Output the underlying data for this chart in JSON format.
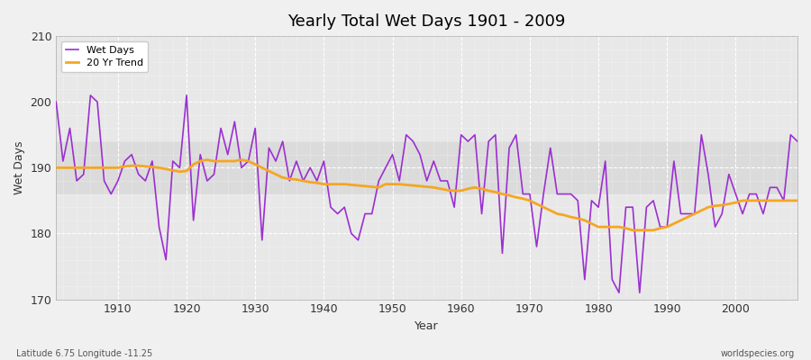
{
  "title": "Yearly Total Wet Days 1901 - 2009",
  "xlabel": "Year",
  "ylabel": "Wet Days",
  "footnote_left": "Latitude 6.75 Longitude -11.25",
  "footnote_right": "worldspecies.org",
  "ylim": [
    170,
    210
  ],
  "xlim": [
    1901,
    2009
  ],
  "yticks": [
    170,
    180,
    190,
    200,
    210
  ],
  "xticks": [
    1910,
    1920,
    1930,
    1940,
    1950,
    1960,
    1970,
    1980,
    1990,
    2000
  ],
  "wet_days_color": "#9b30d0",
  "trend_color": "#f5a623",
  "background_color": "#f0f0f0",
  "plot_bg_color": "#e8e8e8",
  "plot_bg_color2": "#d8d8d8",
  "grid_color": "#ffffff",
  "wet_days": {
    "1901": 200,
    "1902": 191,
    "1903": 196,
    "1904": 188,
    "1905": 189,
    "1906": 201,
    "1907": 200,
    "1908": 188,
    "1909": 186,
    "1910": 188,
    "1911": 191,
    "1912": 192,
    "1913": 189,
    "1914": 188,
    "1915": 191,
    "1916": 181,
    "1917": 176,
    "1918": 191,
    "1919": 190,
    "1920": 201,
    "1921": 182,
    "1922": 192,
    "1923": 188,
    "1924": 189,
    "1925": 196,
    "1926": 192,
    "1927": 197,
    "1928": 190,
    "1929": 191,
    "1930": 196,
    "1931": 179,
    "1932": 193,
    "1933": 191,
    "1934": 194,
    "1935": 188,
    "1936": 191,
    "1937": 188,
    "1938": 190,
    "1939": 188,
    "1940": 191,
    "1941": 184,
    "1942": 183,
    "1943": 184,
    "1944": 180,
    "1945": 179,
    "1946": 183,
    "1947": 183,
    "1948": 188,
    "1949": 190,
    "1950": 192,
    "1951": 188,
    "1952": 195,
    "1953": 194,
    "1954": 192,
    "1955": 188,
    "1956": 191,
    "1957": 188,
    "1958": 188,
    "1959": 184,
    "1960": 195,
    "1961": 194,
    "1962": 195,
    "1963": 183,
    "1964": 194,
    "1965": 195,
    "1966": 177,
    "1967": 193,
    "1968": 195,
    "1969": 186,
    "1970": 186,
    "1971": 178,
    "1972": 186,
    "1973": 193,
    "1974": 186,
    "1975": 186,
    "1976": 186,
    "1977": 185,
    "1978": 173,
    "1979": 185,
    "1980": 184,
    "1981": 191,
    "1982": 173,
    "1983": 171,
    "1984": 184,
    "1985": 184,
    "1986": 171,
    "1987": 184,
    "1988": 185,
    "1989": 181,
    "1990": 181,
    "1991": 191,
    "1992": 183,
    "1993": 183,
    "1994": 183,
    "1995": 195,
    "1996": 189,
    "1997": 181,
    "1998": 183,
    "1999": 189,
    "2000": 186,
    "2001": 183,
    "2002": 186,
    "2003": 186,
    "2004": 183,
    "2005": 187,
    "2006": 187,
    "2007": 185,
    "2008": 195,
    "2009": 194
  },
  "trend_20yr": {
    "1901": 190.0,
    "1902": 190.0,
    "1903": 190.0,
    "1904": 190.0,
    "1905": 190.0,
    "1906": 190.0,
    "1907": 190.0,
    "1908": 190.0,
    "1909": 190.0,
    "1910": 190.0,
    "1911": 190.2,
    "1912": 190.3,
    "1913": 190.3,
    "1914": 190.2,
    "1915": 190.1,
    "1916": 190.0,
    "1917": 189.8,
    "1918": 189.6,
    "1919": 189.4,
    "1920": 189.5,
    "1921": 190.5,
    "1922": 191.0,
    "1923": 191.2,
    "1924": 191.0,
    "1925": 191.0,
    "1926": 191.0,
    "1927": 191.0,
    "1928": 191.2,
    "1929": 191.0,
    "1930": 190.5,
    "1931": 190.0,
    "1932": 189.5,
    "1933": 189.0,
    "1934": 188.5,
    "1935": 188.3,
    "1936": 188.2,
    "1937": 188.0,
    "1938": 187.8,
    "1939": 187.7,
    "1940": 187.5,
    "1941": 187.5,
    "1942": 187.5,
    "1943": 187.5,
    "1944": 187.4,
    "1945": 187.3,
    "1946": 187.2,
    "1947": 187.1,
    "1948": 187.0,
    "1949": 187.5,
    "1950": 187.5,
    "1951": 187.5,
    "1952": 187.4,
    "1953": 187.3,
    "1954": 187.2,
    "1955": 187.1,
    "1956": 187.0,
    "1957": 186.8,
    "1958": 186.6,
    "1959": 186.5,
    "1960": 186.5,
    "1961": 186.8,
    "1962": 187.0,
    "1963": 186.8,
    "1964": 186.5,
    "1965": 186.3,
    "1966": 186.0,
    "1967": 185.8,
    "1968": 185.5,
    "1969": 185.3,
    "1970": 185.0,
    "1971": 184.5,
    "1972": 184.0,
    "1973": 183.5,
    "1974": 183.0,
    "1975": 182.8,
    "1976": 182.5,
    "1977": 182.3,
    "1978": 182.0,
    "1979": 181.5,
    "1980": 181.0,
    "1981": 181.0,
    "1982": 181.0,
    "1983": 181.0,
    "1984": 180.8,
    "1985": 180.5,
    "1986": 180.5,
    "1987": 180.5,
    "1988": 180.5,
    "1989": 180.8,
    "1990": 181.0,
    "1991": 181.5,
    "1992": 182.0,
    "1993": 182.5,
    "1994": 183.0,
    "1995": 183.5,
    "1996": 184.0,
    "1997": 184.2,
    "1998": 184.3,
    "1999": 184.5,
    "2000": 184.7,
    "2001": 185.0,
    "2002": 185.0,
    "2003": 185.0,
    "2004": 185.0,
    "2005": 185.0,
    "2006": 185.0,
    "2007": 185.0,
    "2008": 185.0,
    "2009": 185.0
  }
}
